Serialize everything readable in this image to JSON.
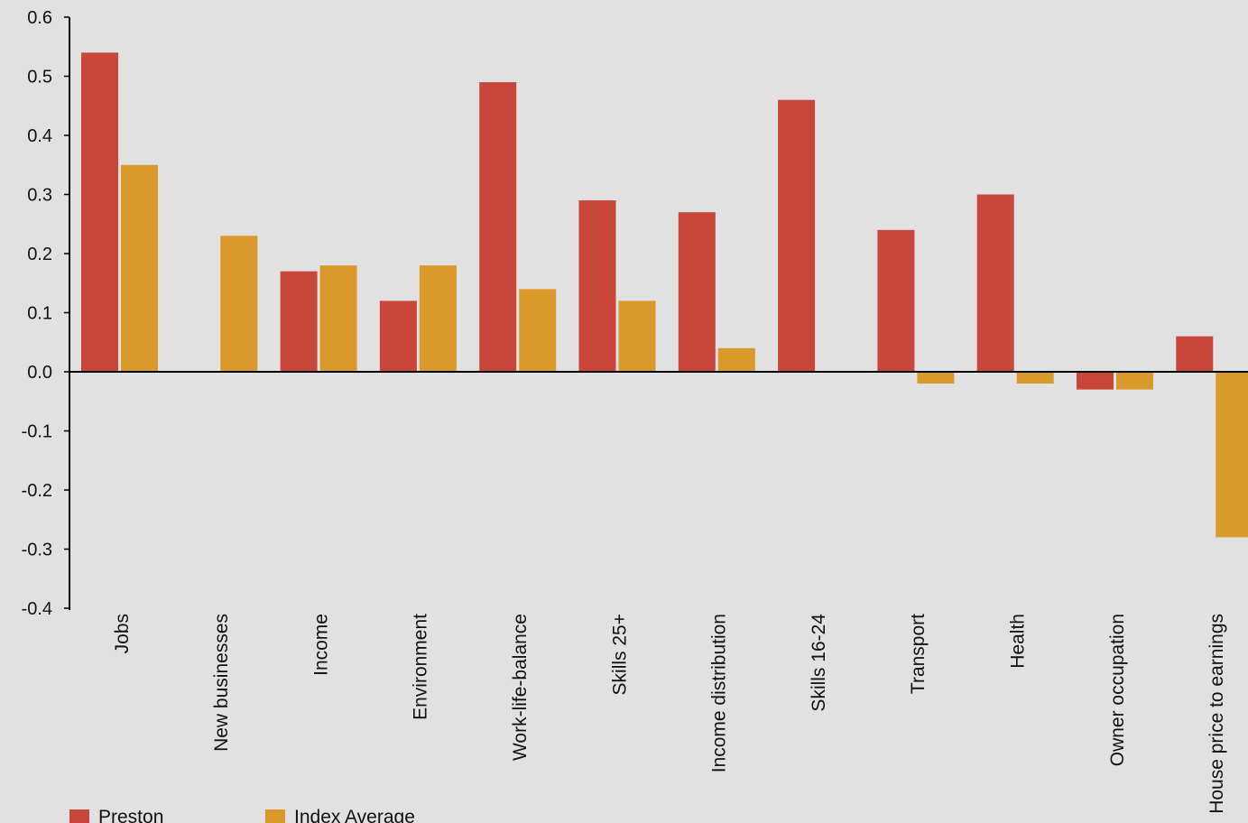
{
  "chart_data": {
    "type": "bar",
    "title": "",
    "xlabel": "",
    "ylabel": "",
    "ylim": [
      -0.4,
      0.6
    ],
    "yticks": [
      "0.6",
      "0.5",
      "0.4",
      "0.3",
      "0.2",
      "0.1",
      "0.0",
      "-0.1",
      "-0.2",
      "-0.3",
      "-0.4"
    ],
    "grid": false,
    "legend_position": "bottom-left",
    "categories": [
      "Jobs",
      "New businesses",
      "Income",
      "Environment",
      "Work-life-balance",
      "Skills 25+",
      "Income distribution",
      "Skills 16-24",
      "Transport",
      "Health",
      "Owner occupation",
      "House price to earnings"
    ],
    "series": [
      {
        "name": "Preston",
        "color": "#c9463a",
        "values": [
          0.54,
          0.0,
          0.17,
          0.12,
          0.49,
          0.29,
          0.27,
          0.46,
          0.24,
          0.3,
          -0.03,
          0.06
        ]
      },
      {
        "name": "Index Average",
        "color": "#d99a2b",
        "values": [
          0.35,
          0.23,
          0.18,
          0.18,
          0.14,
          0.12,
          0.04,
          0.0,
          -0.02,
          -0.02,
          -0.03,
          -0.28
        ]
      }
    ]
  }
}
